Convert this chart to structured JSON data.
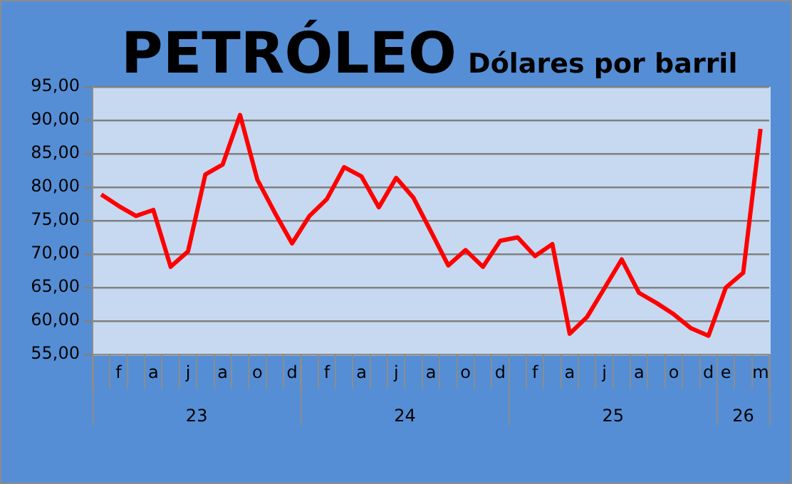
{
  "chart_data": {
    "type": "line",
    "title": "PETRÓLEO",
    "subtitle": "Dólares por barril",
    "categories": [
      null,
      "f",
      null,
      "a",
      null,
      "j",
      null,
      "a",
      null,
      "o",
      null,
      "d",
      null,
      "f",
      null,
      "a",
      null,
      "j",
      null,
      "a",
      null,
      "o",
      null,
      "d",
      null,
      "f",
      null,
      "a",
      null,
      "j",
      null,
      "a",
      null,
      "o",
      null,
      "d",
      "e",
      null,
      "m"
    ],
    "series": [
      {
        "color": "#ff0000",
        "values": [
          78.9,
          77.2,
          75.7,
          76.6,
          68.1,
          70.4,
          81.9,
          83.4,
          90.8,
          81.1,
          76.2,
          71.6,
          75.7,
          78.2,
          83.0,
          81.6,
          77.0,
          81.4,
          78.4,
          73.4,
          68.3,
          70.6,
          68.1,
          72.0,
          72.5,
          69.7,
          71.5,
          58.1,
          60.6,
          64.9,
          69.2,
          64.2,
          62.7,
          61.0,
          58.9,
          57.8,
          65.0,
          67.2,
          88.7
        ]
      }
    ],
    "annotations": [
      "23",
      "24",
      "25",
      "26"
    ],
    "ylim": [
      55,
      95
    ],
    "yticks": [
      {
        "value": 55,
        "label": "55,00"
      },
      {
        "value": 60,
        "label": "60,00"
      },
      {
        "value": 65,
        "label": "65,00"
      },
      {
        "value": 70,
        "label": "70,00"
      },
      {
        "value": 75,
        "label": "75,00"
      },
      {
        "value": 80,
        "label": "80,00"
      },
      {
        "value": 85,
        "label": "85,00"
      },
      {
        "value": 90,
        "label": "90,00"
      },
      {
        "value": 95,
        "label": "95,00"
      }
    ],
    "grid": "y",
    "legend": false,
    "marker": "none",
    "line_style": "solid"
  }
}
